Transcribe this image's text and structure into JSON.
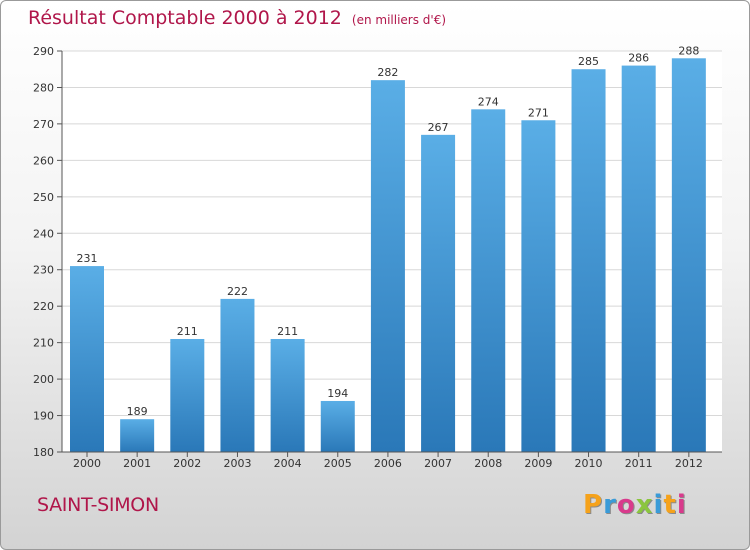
{
  "header": {
    "title": "Résultat Comptable 2000 à 2012",
    "subtitle": "(en milliers d'€)"
  },
  "footer": {
    "commune": "SAINT-SIMON",
    "logo_text": "Proxiti",
    "logo_colors": [
      "#f5a21b",
      "#3a9bd8",
      "#d93a8c",
      "#8bc53f",
      "#3a9bd8",
      "#f5a21b",
      "#d93a8c"
    ]
  },
  "colors": {
    "bar_light": "#5aaee6",
    "bar_dark": "#2a78b8",
    "title": "#b0164a",
    "grid": "#d8d8d8",
    "plot_bg": "#ffffff"
  },
  "chart_data": {
    "type": "bar",
    "title": "Résultat Comptable 2000 à 2012",
    "subtitle": "(en milliers d'€)",
    "categories": [
      "2000",
      "2001",
      "2002",
      "2003",
      "2004",
      "2005",
      "2006",
      "2007",
      "2008",
      "2009",
      "2010",
      "2011",
      "2012"
    ],
    "values": [
      231,
      189,
      211,
      222,
      211,
      194,
      282,
      267,
      274,
      271,
      285,
      286,
      288
    ],
    "ylim": [
      180,
      290
    ],
    "yticks": [
      180,
      190,
      200,
      210,
      220,
      230,
      240,
      250,
      260,
      270,
      280,
      290
    ],
    "grid": true,
    "xlabel": "",
    "ylabel": ""
  }
}
